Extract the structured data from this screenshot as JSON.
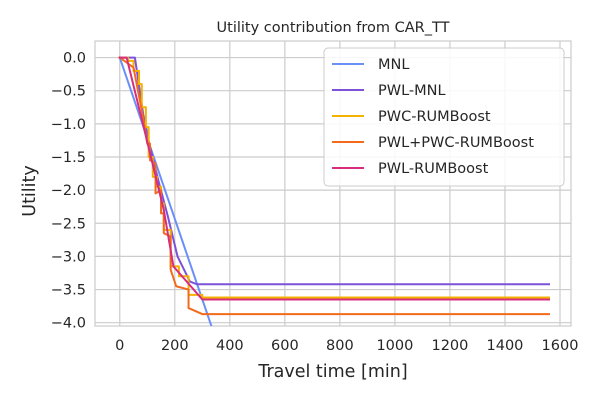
{
  "chart_data": {
    "type": "line",
    "title": "Utility contribution from CAR_TT",
    "xlabel": "Travel time [min]",
    "ylabel": "Utility",
    "xlim": [
      -90,
      1640
    ],
    "ylim": [
      -4.05,
      0.25
    ],
    "xticks": [
      0,
      200,
      400,
      600,
      800,
      1000,
      1200,
      1400,
      1600
    ],
    "yticks": [
      0.0,
      -0.5,
      -1.0,
      -1.5,
      -2.0,
      -2.5,
      -3.0,
      -3.5,
      -4.0
    ],
    "xtick_labels": [
      "0",
      "200",
      "400",
      "600",
      "800",
      "1000",
      "1200",
      "1400",
      "1600"
    ],
    "ytick_labels": [
      "0.0",
      "−0.5",
      "−1.0",
      "−1.5",
      "−2.0",
      "−2.5",
      "−3.0",
      "−3.5",
      "−4.0"
    ],
    "grid": true,
    "legend_position": "top-right",
    "series": [
      {
        "name": "MNL",
        "color": "#6a8ff7",
        "points": [
          [
            0,
            0
          ],
          [
            333,
            -4.05
          ]
        ]
      },
      {
        "name": "PWL-MNL",
        "color": "#7b52d9",
        "points": [
          [
            0,
            0
          ],
          [
            55,
            0
          ],
          [
            85,
            -0.85
          ],
          [
            110,
            -1.35
          ],
          [
            140,
            -1.85
          ],
          [
            175,
            -2.4
          ],
          [
            210,
            -3.0
          ],
          [
            255,
            -3.38
          ],
          [
            280,
            -3.42
          ],
          [
            1560,
            -3.42
          ]
        ]
      },
      {
        "name": "PWC-RUMBoost",
        "color": "#f5b100",
        "points": [
          [
            0,
            0
          ],
          [
            30,
            0
          ],
          [
            30,
            -0.05
          ],
          [
            50,
            -0.05
          ],
          [
            50,
            -0.2
          ],
          [
            70,
            -0.2
          ],
          [
            70,
            -0.4
          ],
          [
            80,
            -0.4
          ],
          [
            80,
            -0.75
          ],
          [
            95,
            -0.75
          ],
          [
            95,
            -1.05
          ],
          [
            105,
            -1.05
          ],
          [
            105,
            -1.5
          ],
          [
            120,
            -1.5
          ],
          [
            120,
            -1.8
          ],
          [
            135,
            -1.8
          ],
          [
            135,
            -1.95
          ],
          [
            150,
            -1.95
          ],
          [
            150,
            -2.2
          ],
          [
            160,
            -2.2
          ],
          [
            160,
            -2.6
          ],
          [
            185,
            -2.6
          ],
          [
            185,
            -3.15
          ],
          [
            215,
            -3.15
          ],
          [
            215,
            -3.3
          ],
          [
            250,
            -3.3
          ],
          [
            250,
            -3.58
          ],
          [
            300,
            -3.58
          ],
          [
            300,
            -3.62
          ],
          [
            1560,
            -3.62
          ]
        ]
      },
      {
        "name": "PWL+PWC-RUMBoost",
        "color": "#f26b1d",
        "points": [
          [
            0,
            0
          ],
          [
            50,
            -0.15
          ],
          [
            80,
            -0.8
          ],
          [
            100,
            -1.3
          ],
          [
            110,
            -1.3
          ],
          [
            110,
            -1.55
          ],
          [
            130,
            -1.6
          ],
          [
            130,
            -2.05
          ],
          [
            150,
            -2.0
          ],
          [
            150,
            -2.35
          ],
          [
            160,
            -2.35
          ],
          [
            160,
            -2.65
          ],
          [
            185,
            -2.7
          ],
          [
            185,
            -3.2
          ],
          [
            205,
            -3.45
          ],
          [
            250,
            -3.5
          ],
          [
            250,
            -3.78
          ],
          [
            300,
            -3.87
          ],
          [
            1560,
            -3.87
          ]
        ]
      },
      {
        "name": "PWL-RUMBoost",
        "color": "#d62d7f",
        "points": [
          [
            0,
            0
          ],
          [
            25,
            0
          ],
          [
            90,
            -1.1
          ],
          [
            125,
            -1.7
          ],
          [
            160,
            -2.3
          ],
          [
            195,
            -3.15
          ],
          [
            300,
            -3.65
          ],
          [
            1560,
            -3.65
          ]
        ]
      }
    ]
  }
}
